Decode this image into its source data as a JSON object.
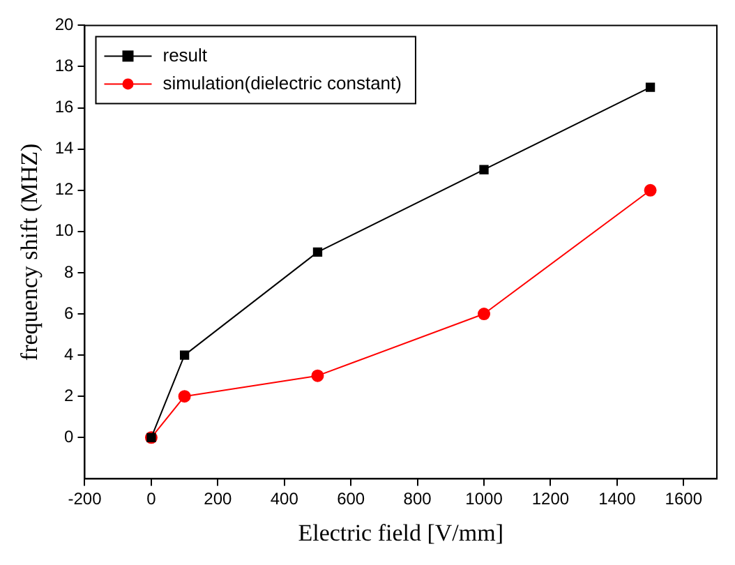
{
  "chart_data": {
    "type": "line",
    "xlabel": "Electric field [V/mm]",
    "ylabel": "frequency shift (MHZ)",
    "x": [
      0,
      100,
      500,
      1000,
      1500
    ],
    "series": [
      {
        "name": "result",
        "color": "#000000",
        "marker": "square",
        "values": [
          0,
          4,
          9,
          13,
          17
        ]
      },
      {
        "name": "simulation(dielectric constant)",
        "color": "#ff0000",
        "marker": "circle",
        "values": [
          0,
          2,
          3,
          6,
          12
        ]
      }
    ],
    "xlim": [
      -200,
      1700
    ],
    "xticks": [
      -200,
      0,
      200,
      400,
      600,
      800,
      1000,
      1200,
      1400,
      1600
    ],
    "ylim": [
      -2,
      20
    ],
    "yticks": [
      0,
      2,
      4,
      6,
      8,
      10,
      12,
      14,
      16,
      18,
      20
    ],
    "grid": false,
    "legend": "top left",
    "line_style": "solid"
  }
}
